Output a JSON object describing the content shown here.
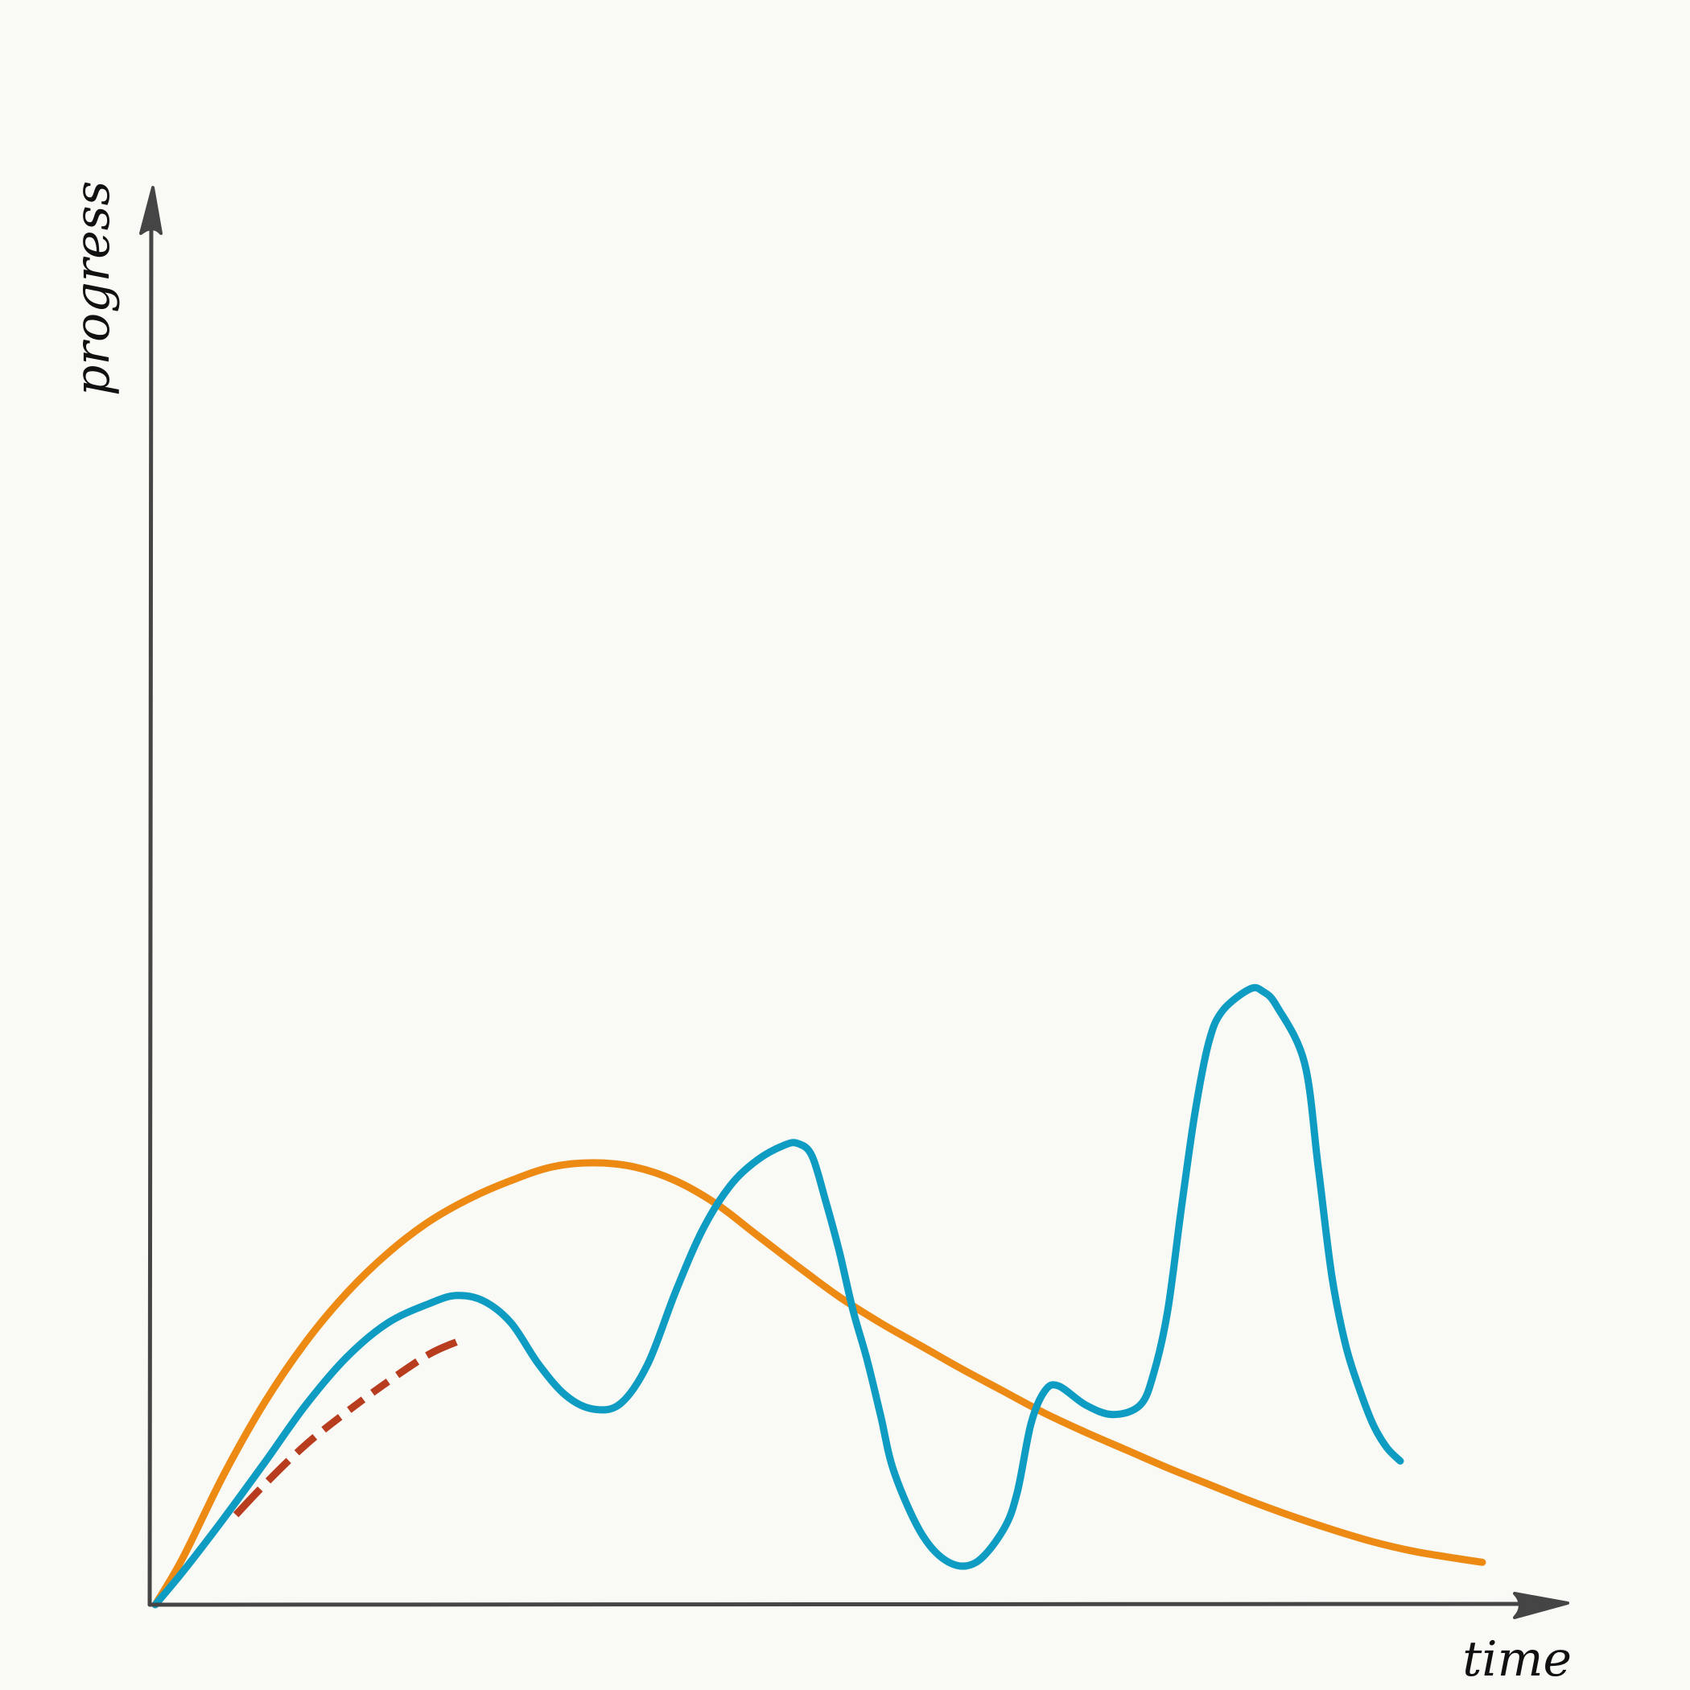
{
  "chart_data": {
    "type": "line",
    "title": "",
    "xlabel": "time",
    "ylabel": "progress",
    "xlim": [
      0,
      100
    ],
    "ylim": [
      0,
      100
    ],
    "grid": false,
    "legend": "none",
    "axis_color": "#454545",
    "background": "#f9f9f5",
    "series": [
      {
        "color": "#ec8a14",
        "style": "solid",
        "points": [
          [
            0,
            0
          ],
          [
            2,
            3.4
          ],
          [
            5,
            9.5
          ],
          [
            8,
            14.8
          ],
          [
            11,
            19.2
          ],
          [
            14,
            22.8
          ],
          [
            17,
            25.7
          ],
          [
            20,
            28.0
          ],
          [
            23,
            29.7
          ],
          [
            26,
            31.0
          ],
          [
            29,
            32.0
          ],
          [
            32,
            32.3
          ],
          [
            35,
            32.0
          ],
          [
            38,
            31.0
          ],
          [
            41,
            29.3
          ],
          [
            44,
            27.0
          ],
          [
            47,
            24.7
          ],
          [
            50,
            22.5
          ],
          [
            53,
            20.6
          ],
          [
            56,
            18.9
          ],
          [
            59,
            17.2
          ],
          [
            62,
            15.6
          ],
          [
            65,
            14.0
          ],
          [
            68,
            12.6
          ],
          [
            71,
            11.3
          ],
          [
            74,
            10.0
          ],
          [
            77,
            8.8
          ],
          [
            80,
            7.6
          ],
          [
            83,
            6.5
          ],
          [
            86,
            5.5
          ],
          [
            89,
            4.6
          ],
          [
            92,
            3.9
          ],
          [
            95,
            3.4
          ],
          [
            97,
            3.1
          ]
        ]
      },
      {
        "color": "#0f9cc2",
        "style": "solid",
        "points": [
          [
            0,
            0
          ],
          [
            2,
            2.4
          ],
          [
            5,
            6.3
          ],
          [
            8,
            10.4
          ],
          [
            11,
            14.6
          ],
          [
            14,
            18.1
          ],
          [
            17,
            20.6
          ],
          [
            20,
            22.0
          ],
          [
            22,
            22.6
          ],
          [
            24,
            22.2
          ],
          [
            26,
            20.6
          ],
          [
            28,
            17.6
          ],
          [
            30,
            15.3
          ],
          [
            32,
            14.3
          ],
          [
            34,
            14.7
          ],
          [
            36,
            17.6
          ],
          [
            38,
            22.8
          ],
          [
            40,
            27.4
          ],
          [
            42,
            30.6
          ],
          [
            44,
            32.5
          ],
          [
            46,
            33.6
          ],
          [
            47,
            33.7
          ],
          [
            48,
            32.8
          ],
          [
            49,
            29.5
          ],
          [
            50,
            25.8
          ],
          [
            51,
            21.5
          ],
          [
            52,
            18.0
          ],
          [
            53,
            13.9
          ],
          [
            54,
            9.7
          ],
          [
            56,
            5.2
          ],
          [
            58,
            3.1
          ],
          [
            60,
            3.1
          ],
          [
            62,
            5.5
          ],
          [
            63,
            8.2
          ],
          [
            64,
            13.2
          ],
          [
            65,
            15.6
          ],
          [
            66,
            16.0
          ],
          [
            68,
            14.6
          ],
          [
            70,
            13.9
          ],
          [
            72,
            14.6
          ],
          [
            73,
            17.0
          ],
          [
            74,
            21.5
          ],
          [
            75,
            29.0
          ],
          [
            76,
            36.0
          ],
          [
            77,
            41.1
          ],
          [
            78,
            43.4
          ],
          [
            80,
            45.0
          ],
          [
            81,
            44.8
          ],
          [
            82,
            43.7
          ],
          [
            84,
            39.6
          ],
          [
            85,
            32.0
          ],
          [
            86,
            24.0
          ],
          [
            87,
            19.0
          ],
          [
            88,
            15.8
          ],
          [
            89,
            13.2
          ],
          [
            90,
            11.5
          ],
          [
            91,
            10.5
          ]
        ]
      },
      {
        "color": "#b83c1e",
        "style": "dashed",
        "points": [
          [
            0,
            0
          ],
          [
            2,
            2.3
          ],
          [
            5,
            5.6
          ],
          [
            8,
            8.8
          ],
          [
            11,
            11.7
          ],
          [
            14,
            14.1
          ],
          [
            17,
            16.3
          ],
          [
            20,
            18.3
          ],
          [
            22,
            19.2
          ]
        ]
      }
    ]
  }
}
